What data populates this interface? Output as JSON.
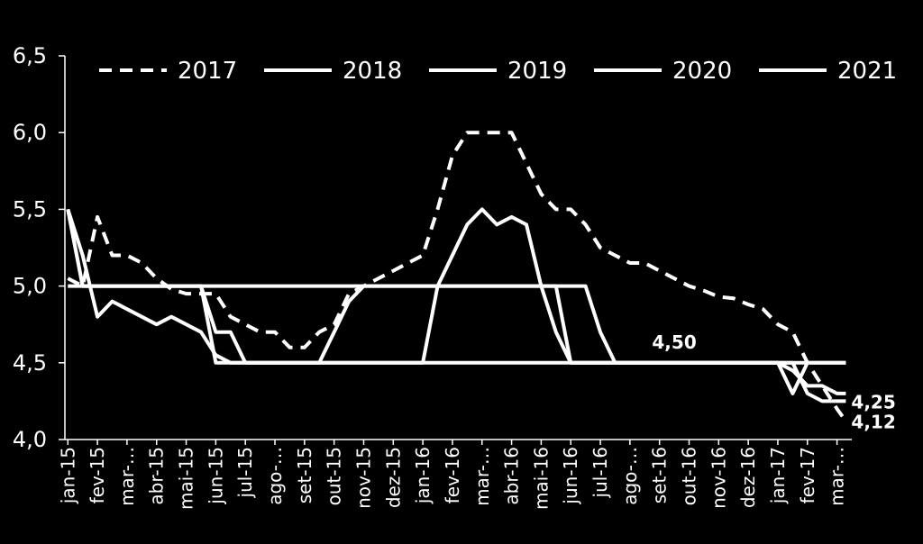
{
  "chart_data": {
    "type": "line",
    "xlim": [
      -0.1,
      26.5
    ],
    "ylim": [
      4.0,
      6.5
    ],
    "yticks": [
      {
        "value": 4.0,
        "label": "4,0"
      },
      {
        "value": 4.5,
        "label": "4,5"
      },
      {
        "value": 5.0,
        "label": "5,0"
      },
      {
        "value": 5.5,
        "label": "5,5"
      },
      {
        "value": 6.0,
        "label": "6,0"
      },
      {
        "value": 6.5,
        "label": "6,5"
      }
    ],
    "xticks": [
      {
        "value": 0,
        "label": "jan-15"
      },
      {
        "value": 1,
        "label": "fev-15"
      },
      {
        "value": 2,
        "label": "mar-…"
      },
      {
        "value": 3,
        "label": "abr-15"
      },
      {
        "value": 4,
        "label": "mai-15"
      },
      {
        "value": 5,
        "label": "jun-15"
      },
      {
        "value": 6,
        "label": "jul-15"
      },
      {
        "value": 7,
        "label": "ago-…"
      },
      {
        "value": 8,
        "label": "set-15"
      },
      {
        "value": 9,
        "label": "out-15"
      },
      {
        "value": 10,
        "label": "nov-15"
      },
      {
        "value": 11,
        "label": "dez-15"
      },
      {
        "value": 12,
        "label": "jan-16"
      },
      {
        "value": 13,
        "label": "fev-16"
      },
      {
        "value": 14,
        "label": "mar-…"
      },
      {
        "value": 15,
        "label": "abr-16"
      },
      {
        "value": 16,
        "label": "mai-16"
      },
      {
        "value": 17,
        "label": "jun-16"
      },
      {
        "value": 18,
        "label": "jul-16"
      },
      {
        "value": 19,
        "label": "ago-…"
      },
      {
        "value": 20,
        "label": "set-16"
      },
      {
        "value": 21,
        "label": "out-16"
      },
      {
        "value": 22,
        "label": "nov-16"
      },
      {
        "value": 23,
        "label": "dez-16"
      },
      {
        "value": 24,
        "label": "jan-17"
      },
      {
        "value": 25,
        "label": "fev-17"
      },
      {
        "value": 26,
        "label": "mar-…"
      }
    ],
    "x": [
      0,
      0.5,
      1,
      1.5,
      2,
      2.5,
      3,
      3.5,
      4,
      4.5,
      5,
      5.5,
      6,
      6.5,
      7,
      7.5,
      8,
      8.5,
      9,
      9.5,
      10,
      10.5,
      11,
      11.5,
      12,
      12.5,
      13,
      13.5,
      14,
      14.5,
      15,
      15.5,
      16,
      16.5,
      17,
      17.5,
      18,
      18.5,
      19,
      19.5,
      20,
      20.5,
      21,
      21.5,
      22,
      22.5,
      23,
      23.5,
      24,
      24.5,
      25,
      25.5,
      26,
      26.3
    ],
    "series": [
      {
        "name": "2017",
        "color": "#ffffff",
        "dashed": true,
        "values": [
          5.05,
          5.0,
          5.45,
          5.2,
          5.2,
          5.15,
          5.05,
          4.98,
          4.95,
          4.95,
          4.95,
          4.8,
          4.75,
          4.7,
          4.7,
          4.6,
          4.6,
          4.7,
          4.75,
          4.95,
          5.0,
          5.05,
          5.1,
          5.15,
          5.2,
          5.5,
          5.85,
          6.0,
          6.0,
          6.0,
          6.0,
          5.8,
          5.6,
          5.5,
          5.5,
          5.4,
          5.25,
          5.2,
          5.15,
          5.15,
          5.1,
          5.05,
          5.0,
          4.97,
          4.93,
          4.92,
          4.88,
          4.85,
          4.75,
          4.7,
          4.5,
          4.35,
          4.2,
          4.12
        ]
      },
      {
        "name": "2018",
        "color": "#ffffff",
        "dashed": false,
        "values": [
          5.5,
          5.2,
          4.8,
          4.9,
          4.85,
          4.8,
          4.75,
          4.8,
          4.75,
          4.7,
          4.55,
          4.5,
          4.5,
          4.5,
          4.5,
          4.5,
          4.5,
          4.5,
          4.7,
          4.9,
          5.0,
          5.0,
          5.0,
          5.0,
          5.0,
          5.0,
          5.0,
          5.0,
          5.0,
          5.0,
          5.0,
          5.0,
          5.0,
          5.0,
          4.5,
          4.5,
          4.5,
          4.5,
          4.5,
          4.5,
          4.5,
          4.5,
          4.5,
          4.5,
          4.5,
          4.5,
          4.5,
          4.5,
          4.5,
          4.5,
          4.5,
          4.5,
          4.5,
          4.5
        ]
      },
      {
        "name": "2019",
        "color": "#ffffff",
        "dashed": false,
        "values": [
          5.5,
          5.0,
          5.0,
          5.0,
          5.0,
          5.0,
          5.0,
          5.0,
          5.0,
          5.0,
          4.7,
          4.7,
          4.5,
          4.5,
          4.5,
          4.5,
          4.5,
          4.5,
          4.5,
          4.5,
          4.5,
          4.5,
          4.5,
          4.5,
          4.5,
          5.0,
          5.2,
          5.4,
          5.5,
          5.4,
          5.45,
          5.4,
          5.0,
          4.7,
          4.5,
          4.5,
          4.5,
          4.5,
          4.5,
          4.5,
          4.5,
          4.5,
          4.5,
          4.5,
          4.5,
          4.5,
          4.5,
          4.5,
          4.5,
          4.45,
          4.35,
          4.35,
          4.3,
          4.3
        ]
      },
      {
        "name": "2020",
        "color": "#ffffff",
        "dashed": false,
        "values": [
          5.5,
          5.0,
          5.0,
          5.0,
          5.0,
          5.0,
          5.0,
          5.0,
          5.0,
          5.0,
          5.0,
          5.0,
          5.0,
          5.0,
          5.0,
          5.0,
          5.0,
          5.0,
          5.0,
          5.0,
          5.0,
          5.0,
          5.0,
          5.0,
          5.0,
          5.0,
          5.0,
          5.0,
          5.0,
          5.0,
          5.0,
          5.0,
          5.0,
          5.0,
          5.0,
          5.0,
          4.7,
          4.5,
          4.5,
          4.5,
          4.5,
          4.5,
          4.5,
          4.5,
          4.5,
          4.5,
          4.5,
          4.5,
          4.5,
          4.5,
          4.3,
          4.25,
          4.25,
          4.25
        ]
      },
      {
        "name": "2021",
        "color": "#ffffff",
        "dashed": false,
        "values": [
          5.0,
          5.0,
          5.0,
          5.0,
          5.0,
          5.0,
          5.0,
          5.0,
          5.0,
          5.0,
          4.5,
          4.5,
          4.5,
          4.5,
          4.5,
          4.5,
          4.5,
          4.5,
          4.5,
          4.5,
          4.5,
          4.5,
          4.5,
          4.5,
          4.5,
          4.5,
          4.5,
          4.5,
          4.5,
          4.5,
          4.5,
          4.5,
          4.5,
          4.5,
          4.5,
          4.5,
          4.5,
          4.5,
          4.5,
          4.5,
          4.5,
          4.5,
          4.5,
          4.5,
          4.5,
          4.5,
          4.5,
          4.5,
          4.5,
          4.3,
          4.5,
          4.5,
          4.5,
          4.5
        ]
      }
    ],
    "annotations": [
      {
        "label": "4,50",
        "x": 20.5,
        "value": 4.5,
        "position": "above"
      },
      {
        "label": "4,25",
        "x": 26.3,
        "value": 4.25,
        "position": "right"
      },
      {
        "label": "4,12",
        "x": 26.3,
        "value": 4.12,
        "position": "right"
      }
    ],
    "legend": "top"
  }
}
